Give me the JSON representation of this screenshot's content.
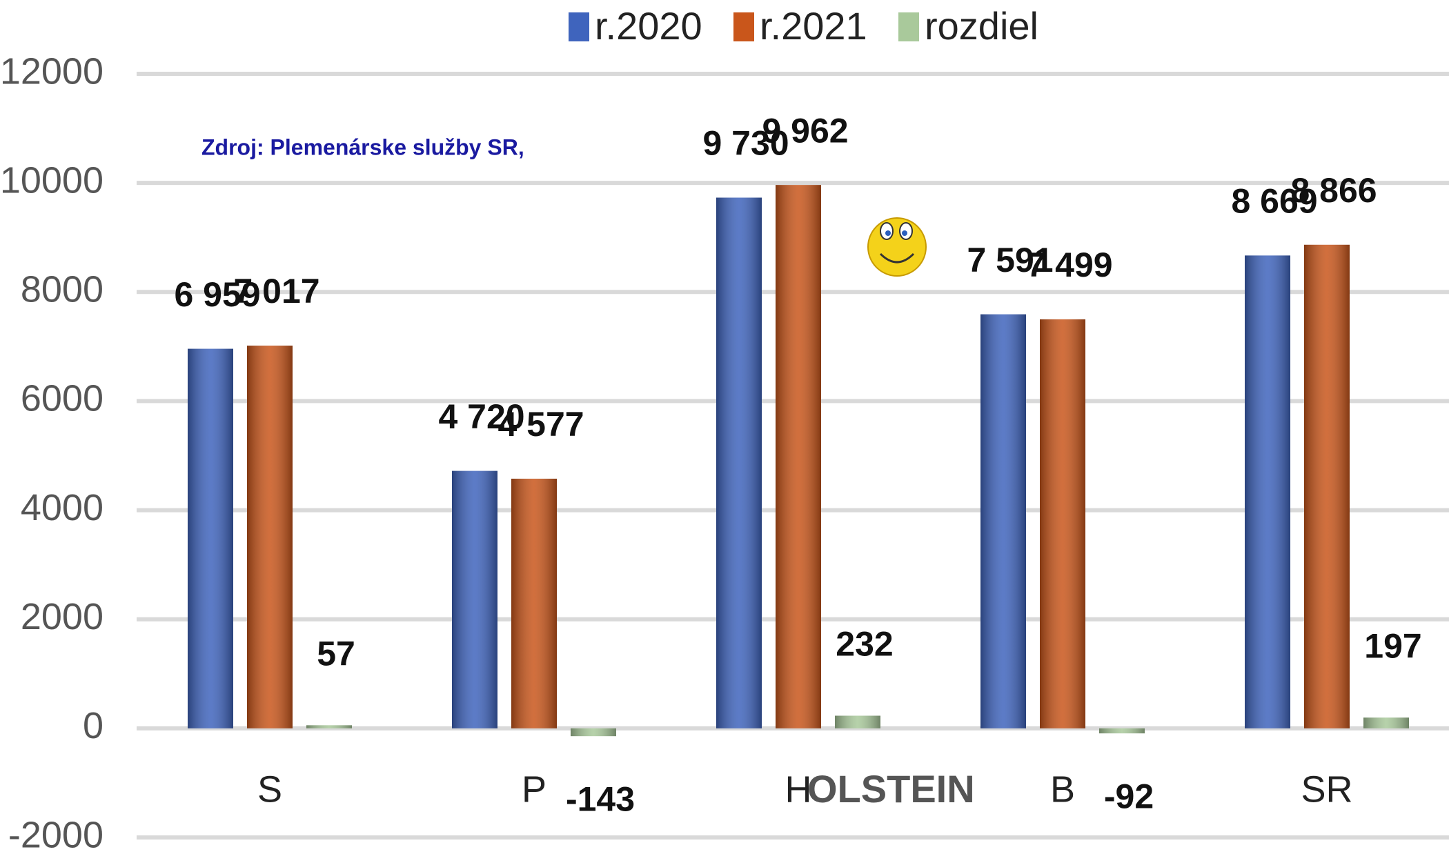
{
  "chart_data": {
    "type": "bar",
    "categories": [
      "S",
      "P",
      "H",
      "B",
      "SR"
    ],
    "series": [
      {
        "name": "r.2020",
        "color": "#3f64bd",
        "values": [
          6959,
          4720,
          9730,
          7591,
          8669
        ],
        "value_labels": [
          "6 959",
          "4 720",
          "9 730",
          "7 591",
          "8 669"
        ]
      },
      {
        "name": "r.2021",
        "color": "#c9561b",
        "values": [
          7017,
          4577,
          9962,
          7499,
          8866
        ],
        "value_labels": [
          "7 017",
          "4 577",
          "9 962",
          "7 499",
          "8 866"
        ]
      },
      {
        "name": "rozdiel",
        "color": "#a9c99b",
        "values": [
          57,
          -143,
          232,
          -92,
          197
        ]
      }
    ],
    "ylim": [
      -2000,
      12000
    ],
    "yticks": [
      -2000,
      0,
      2000,
      4000,
      6000,
      8000,
      10000,
      12000
    ],
    "grid": true,
    "legend": "top",
    "annotations": [
      "Zdroj: Plemenárske služby SR,",
      "OLSTEIN"
    ]
  }
}
